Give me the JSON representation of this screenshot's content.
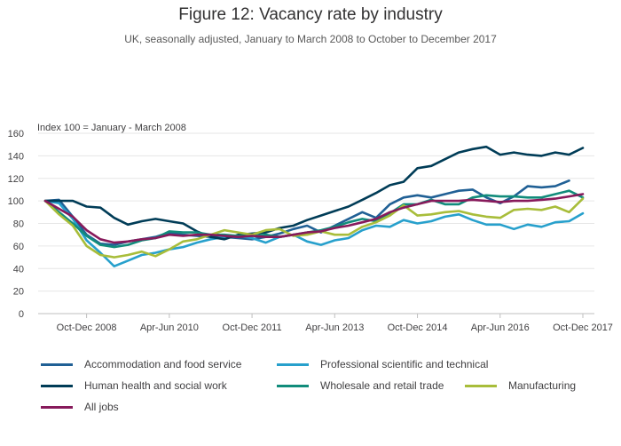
{
  "chart_data": {
    "type": "line",
    "title": "Figure 12: Vacancy rate by industry",
    "subtitle": "UK, seasonally adjusted, January to March 2008 to October to December 2017",
    "ylabel": "Index 100 = January - March 2008",
    "ylim": [
      0,
      160
    ],
    "yticks": [
      0,
      20,
      40,
      60,
      80,
      100,
      120,
      140,
      160
    ],
    "xtick_labels": [
      {
        "index": 3,
        "label": "Oct-Dec 2008"
      },
      {
        "index": 9,
        "label": "Apr-Jun 2010"
      },
      {
        "index": 15,
        "label": "Oct-Dec 2011"
      },
      {
        "index": 21,
        "label": "Apr-Jun 2013"
      },
      {
        "index": 27,
        "label": "Oct-Dec 2014"
      },
      {
        "index": 33,
        "label": "Apr-Jun 2016"
      },
      {
        "index": 39,
        "label": "Oct-Dec 2017"
      }
    ],
    "x_count": 40,
    "series": [
      {
        "name": "Accommodation and food service",
        "color": "#206095",
        "values": [
          100,
          101,
          86,
          70,
          62,
          61,
          64,
          66,
          68,
          72,
          70,
          69,
          68,
          68,
          67,
          66,
          68,
          71,
          75,
          78,
          72,
          78,
          84,
          90,
          85,
          97,
          103,
          105,
          103,
          106,
          109,
          110,
          103,
          98,
          104,
          113,
          112,
          113,
          118,
          null
        ]
      },
      {
        "name": "Professional scientific and technical",
        "color": "#27a0cc",
        "values": [
          100,
          98,
          84,
          65,
          54,
          42,
          47,
          52,
          54,
          57,
          59,
          63,
          66,
          68,
          69,
          67,
          63,
          68,
          70,
          64,
          61,
          65,
          67,
          74,
          78,
          77,
          83,
          80,
          82,
          86,
          88,
          83,
          79,
          79,
          75,
          79,
          77,
          81,
          82,
          89
        ]
      },
      {
        "name": "Human health and social work",
        "color": "#003c57",
        "values": [
          100,
          100,
          100,
          95,
          94,
          85,
          79,
          82,
          84,
          82,
          80,
          73,
          68,
          66,
          70,
          71,
          72,
          76,
          78,
          83,
          87,
          91,
          95,
          101,
          107,
          114,
          117,
          129,
          131,
          137,
          143,
          146,
          148,
          141,
          143,
          141,
          140,
          143,
          141,
          147
        ]
      },
      {
        "name": "Wholesale and retail trade",
        "color": "#118c7b",
        "values": [
          100,
          90,
          80,
          69,
          61,
          59,
          61,
          65,
          67,
          73,
          72,
          72,
          70,
          70,
          69,
          69,
          70,
          68,
          70,
          72,
          74,
          77,
          81,
          84,
          82,
          89,
          97,
          97,
          101,
          97,
          97,
          103,
          105,
          104,
          104,
          103,
          103,
          106,
          109,
          103
        ]
      },
      {
        "name": "Manufacturing",
        "color": "#a8bd3a",
        "values": [
          100,
          88,
          78,
          60,
          52,
          50,
          52,
          55,
          51,
          57,
          64,
          66,
          70,
          74,
          72,
          70,
          74,
          75,
          69,
          70,
          73,
          70,
          70,
          77,
          81,
          87,
          96,
          87,
          88,
          90,
          91,
          88,
          86,
          85,
          92,
          93,
          92,
          95,
          90,
          102
        ]
      },
      {
        "name": "All jobs",
        "color": "#871a5b",
        "values": [
          100,
          93,
          86,
          74,
          66,
          63,
          64,
          66,
          67,
          70,
          69,
          70,
          70,
          69,
          68,
          69,
          68,
          68,
          70,
          72,
          73,
          76,
          78,
          81,
          84,
          90,
          94,
          97,
          100,
          100,
          100,
          101,
          100,
          99,
          100,
          100,
          101,
          102,
          104,
          106
        ]
      }
    ]
  }
}
